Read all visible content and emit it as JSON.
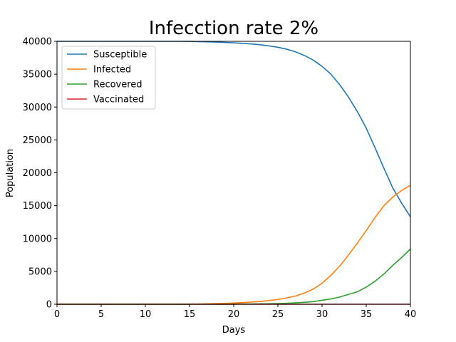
{
  "chart_data": {
    "type": "line",
    "title": "Infecction rate  2%",
    "xlabel": "Days",
    "ylabel": "Population",
    "xlim": [
      0,
      40
    ],
    "ylim": [
      0,
      40000
    ],
    "xticks": [
      0,
      5,
      10,
      15,
      20,
      25,
      30,
      35,
      40
    ],
    "yticks": [
      0,
      5000,
      10000,
      15000,
      20000,
      25000,
      30000,
      35000,
      40000
    ],
    "grid": false,
    "legend_position": "top-left",
    "x": [
      0,
      1,
      2,
      3,
      4,
      5,
      6,
      7,
      8,
      9,
      10,
      11,
      12,
      13,
      14,
      15,
      16,
      17,
      18,
      19,
      20,
      21,
      22,
      23,
      24,
      25,
      26,
      27,
      28,
      29,
      30,
      31,
      32,
      33,
      34,
      35,
      36,
      37,
      38,
      39,
      40
    ],
    "series": [
      {
        "name": "Susceptible",
        "color": "#1f77b4",
        "values": [
          40000,
          40000,
          40000,
          40000,
          40000,
          40000,
          40000,
          40000,
          40000,
          40000,
          40000,
          40000,
          40000,
          40000,
          40000,
          39990,
          39950,
          39920,
          39880,
          39830,
          39780,
          39700,
          39600,
          39480,
          39300,
          39100,
          38800,
          38400,
          37850,
          37150,
          36200,
          35000,
          33400,
          31500,
          29300,
          26800,
          23800,
          20700,
          17700,
          15400,
          13300
        ]
      },
      {
        "name": "Infected",
        "color": "#ff7f0e",
        "values": [
          0,
          0,
          0,
          0,
          0,
          0,
          0,
          0,
          0,
          0,
          0,
          0,
          0,
          0,
          0,
          10,
          40,
          60,
          100,
          130,
          180,
          250,
          330,
          430,
          560,
          720,
          960,
          1250,
          1700,
          2300,
          3200,
          4400,
          5800,
          7500,
          9300,
          11200,
          13200,
          15000,
          16300,
          17300,
          18100
        ]
      },
      {
        "name": "Recovered",
        "color": "#2ca02c",
        "values": [
          0,
          0,
          0,
          0,
          0,
          0,
          0,
          0,
          0,
          0,
          0,
          0,
          0,
          0,
          0,
          0,
          0,
          0,
          0,
          0,
          20,
          30,
          40,
          60,
          80,
          110,
          150,
          210,
          290,
          400,
          600,
          800,
          1100,
          1500,
          1900,
          2600,
          3500,
          4600,
          5900,
          7100,
          8400
        ]
      },
      {
        "name": "Vaccinated",
        "color": "#d62728",
        "values": [
          0,
          0,
          0,
          0,
          0,
          0,
          0,
          0,
          0,
          0,
          0,
          0,
          0,
          0,
          0,
          0,
          0,
          0,
          0,
          0,
          0,
          0,
          0,
          0,
          0,
          0,
          0,
          0,
          0,
          0,
          0,
          0,
          0,
          0,
          0,
          0,
          0,
          0,
          0,
          0,
          0
        ]
      }
    ]
  }
}
